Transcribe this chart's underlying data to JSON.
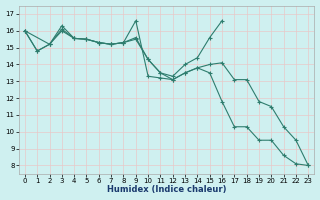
{
  "xlabel": "Humidex (Indice chaleur)",
  "bg_color": "#cff0f0",
  "grid_color": "#e8c8c8",
  "line_color": "#2e7d6e",
  "xlim": [
    -0.5,
    23.5
  ],
  "ylim": [
    7.5,
    17.5
  ],
  "xticks": [
    0,
    1,
    2,
    3,
    4,
    5,
    6,
    7,
    8,
    9,
    10,
    11,
    12,
    13,
    14,
    15,
    16,
    17,
    18,
    19,
    20,
    21,
    22,
    23
  ],
  "yticks": [
    8,
    9,
    10,
    11,
    12,
    13,
    14,
    15,
    16,
    17
  ],
  "series": [
    {
      "x": [
        0,
        1,
        2,
        3,
        4,
        5,
        6,
        7,
        8,
        9,
        10,
        11,
        12,
        13,
        14,
        15,
        16,
        17,
        18,
        19,
        20,
        21,
        22,
        23
      ],
      "y": [
        16.0,
        14.8,
        15.2,
        16.1,
        15.55,
        15.5,
        15.3,
        15.2,
        15.3,
        16.6,
        13.3,
        13.2,
        13.1,
        13.5,
        13.8,
        13.5,
        11.8,
        10.3,
        10.3,
        9.5,
        9.5,
        8.6,
        8.1,
        8.0
      ]
    },
    {
      "x": [
        0,
        1,
        2,
        3,
        4,
        5,
        6,
        7,
        8,
        9,
        10,
        11,
        12,
        13,
        14,
        15,
        16,
        17,
        18,
        19,
        20,
        21,
        22,
        23
      ],
      "y": [
        16.0,
        14.8,
        15.2,
        16.3,
        15.55,
        15.5,
        15.3,
        15.2,
        15.3,
        15.6,
        14.3,
        13.5,
        13.1,
        13.5,
        13.8,
        14.0,
        14.1,
        13.1,
        13.1,
        11.8,
        11.5,
        10.3,
        9.5,
        8.0
      ]
    },
    {
      "x": [
        0,
        2,
        3,
        4,
        5,
        6,
        7,
        8,
        9,
        10,
        11,
        12,
        13,
        14,
        15,
        16
      ],
      "y": [
        16.0,
        15.2,
        16.0,
        15.55,
        15.5,
        15.3,
        15.2,
        15.3,
        15.5,
        14.3,
        13.5,
        13.3,
        14.0,
        14.4,
        15.6,
        16.6
      ]
    }
  ]
}
